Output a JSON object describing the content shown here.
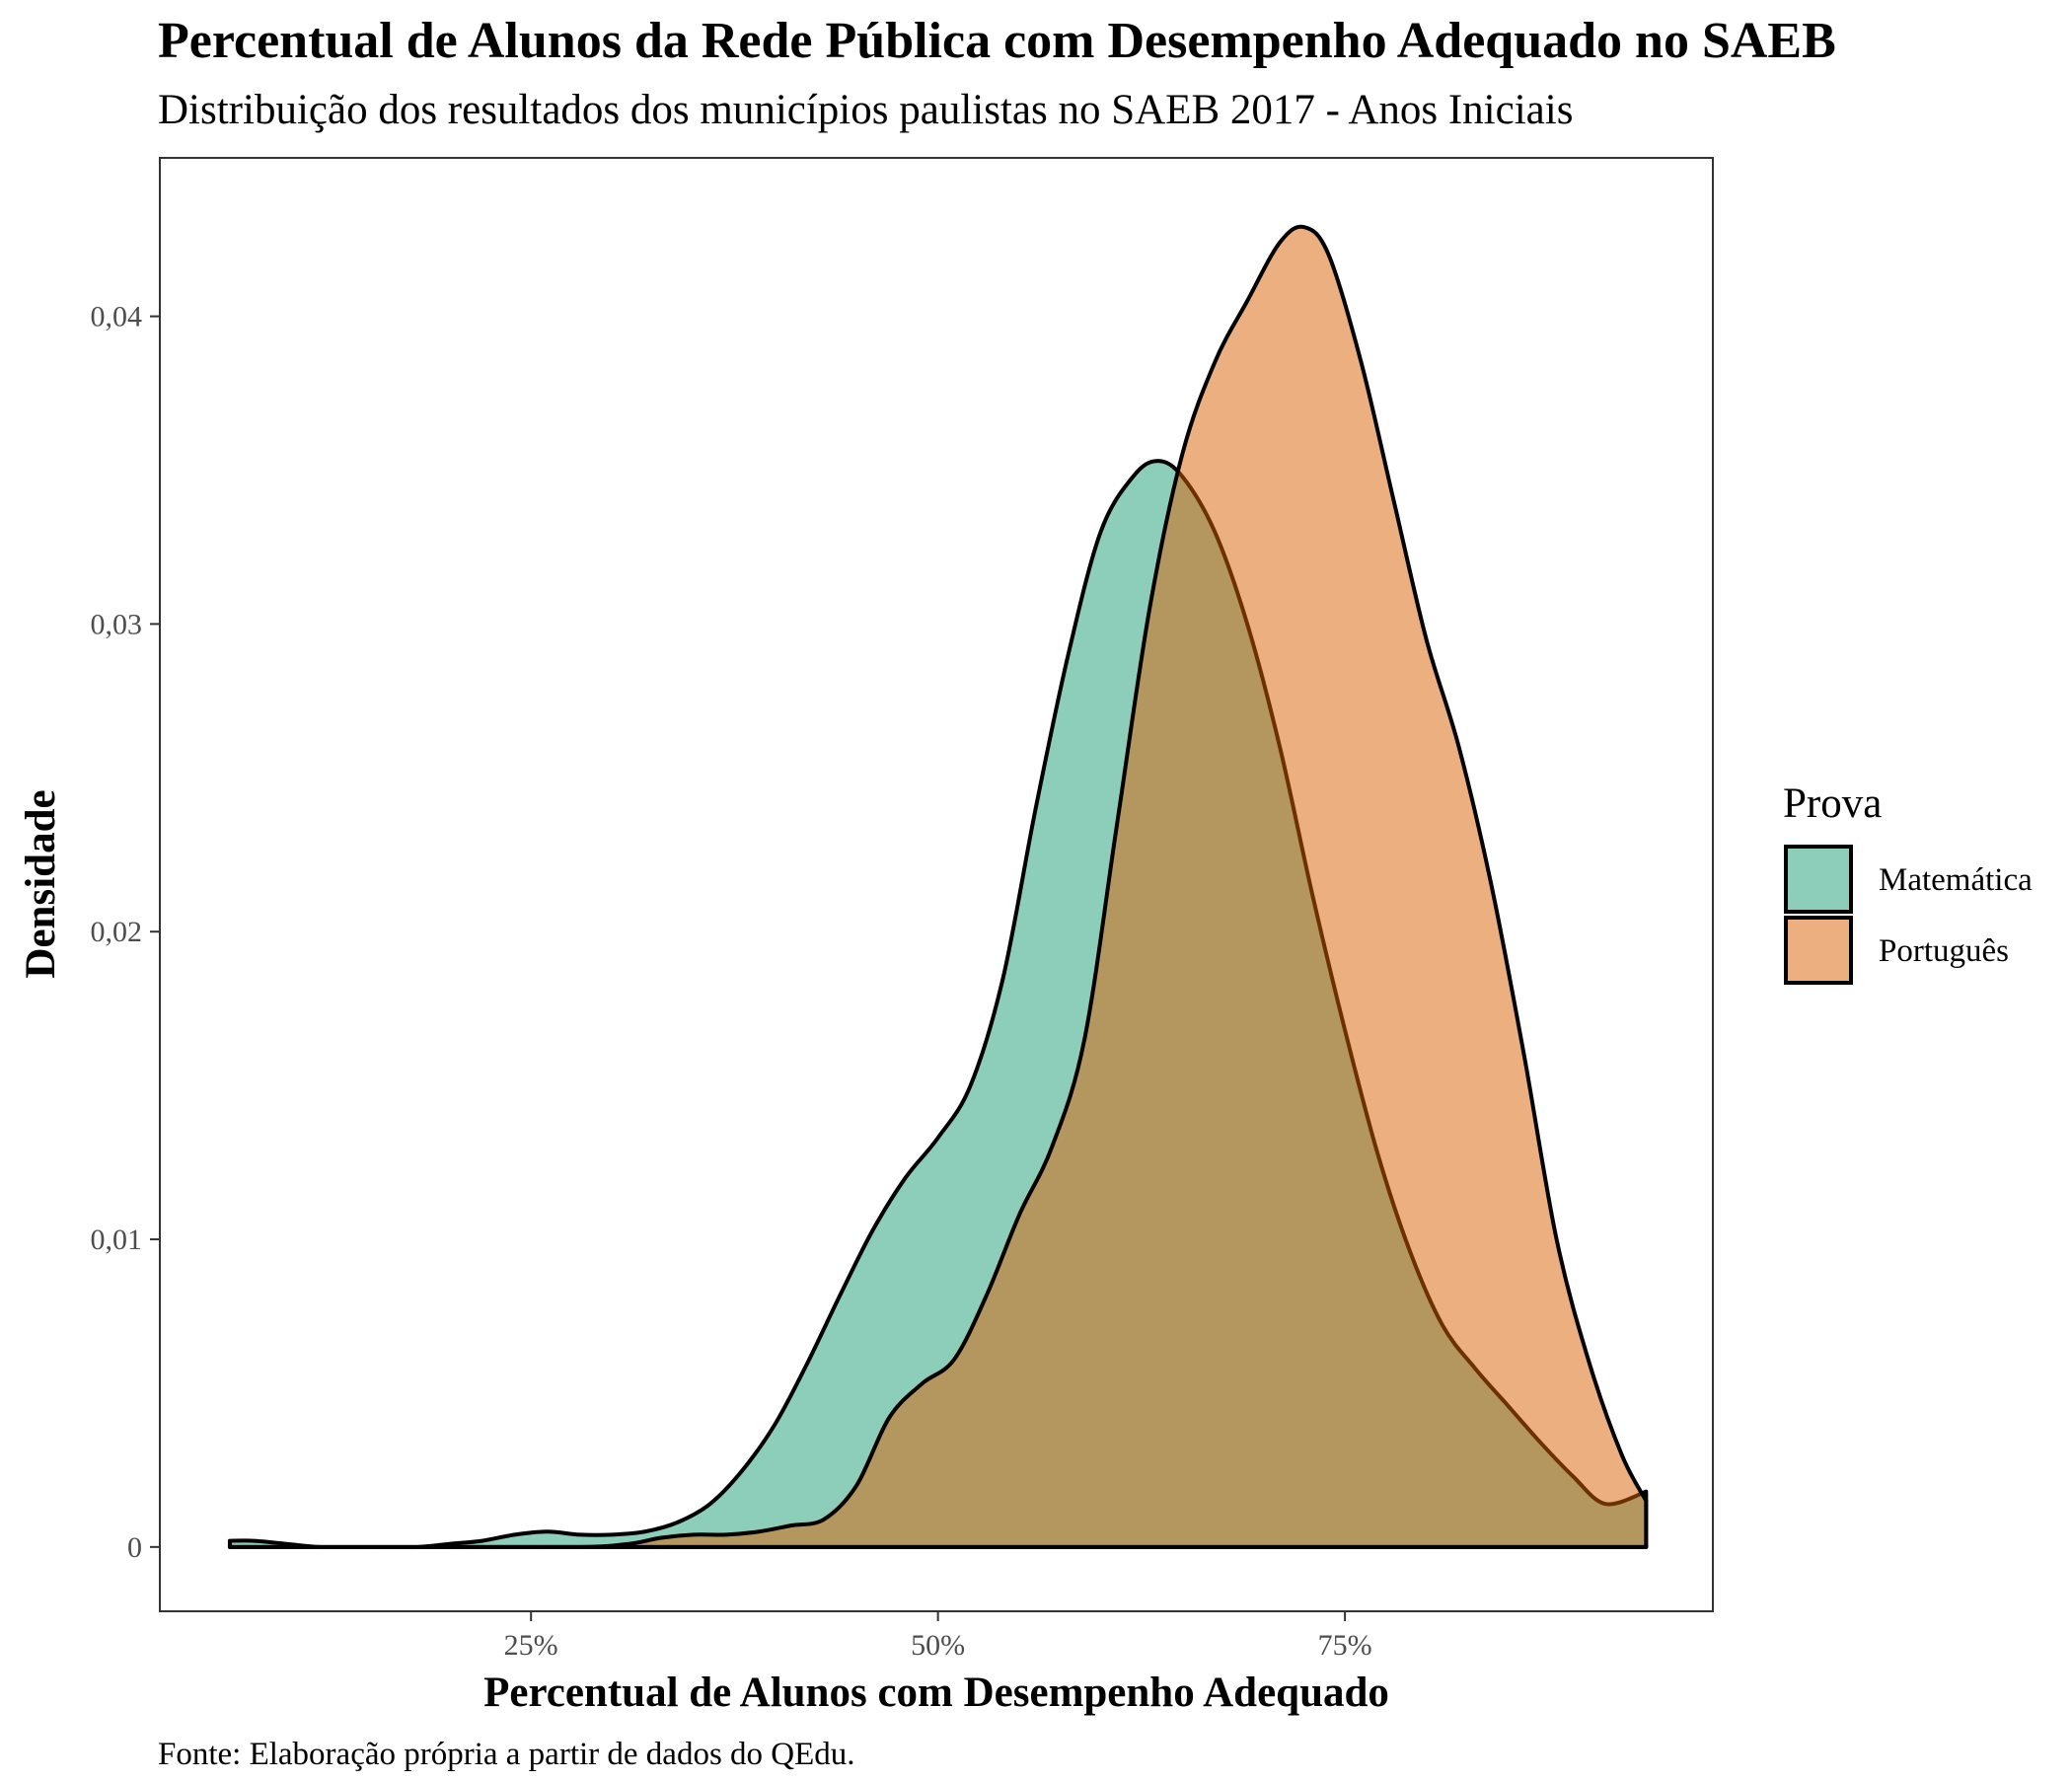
{
  "chart_data": {
    "type": "area",
    "title": "Percentual de Alunos da Rede Pública com Desempenho Adequado no SAEB",
    "subtitle": "Distribuição dos resultados dos municípios paulistas no SAEB 2017 - Anos Iniciais",
    "xlabel": "Percentual de Alunos com Desempenho Adequado",
    "ylabel": "Densidade",
    "caption": "Fonte: Elaboração própria a partir de dados do QEdu.",
    "xlim": [
      2.2,
      97.6
    ],
    "ylim": [
      -0.00209,
      0.04515
    ],
    "x_ticks": [
      {
        "value": 25,
        "label": "25%"
      },
      {
        "value": 50,
        "label": "50%"
      },
      {
        "value": 75,
        "label": "75%"
      }
    ],
    "y_ticks": [
      {
        "value": 0,
        "label": "0"
      },
      {
        "value": 0.01,
        "label": "0,01"
      },
      {
        "value": 0.02,
        "label": "0,02"
      },
      {
        "value": 0.03,
        "label": "0,03"
      },
      {
        "value": 0.04,
        "label": "0,04"
      }
    ],
    "grid": false,
    "legend": {
      "title": "Prova",
      "position": "right"
    },
    "series": [
      {
        "name": "Matemática",
        "color": "#1B9E77",
        "fill_opacity": 0.5,
        "points": [
          [
            6.5,
            0.0002
          ],
          [
            8,
            0.0002
          ],
          [
            10,
            0.0001
          ],
          [
            12,
            0.0
          ],
          [
            15,
            0.0
          ],
          [
            18,
            0.0
          ],
          [
            20,
            0.0001
          ],
          [
            22,
            0.0002
          ],
          [
            24,
            0.0004
          ],
          [
            26,
            0.0005
          ],
          [
            28,
            0.0004
          ],
          [
            30,
            0.0004
          ],
          [
            32,
            0.0005
          ],
          [
            34,
            0.0008
          ],
          [
            36,
            0.0014
          ],
          [
            38,
            0.0025
          ],
          [
            40,
            0.004
          ],
          [
            42,
            0.006
          ],
          [
            44,
            0.0082
          ],
          [
            46,
            0.0103
          ],
          [
            48,
            0.012
          ],
          [
            50,
            0.0133
          ],
          [
            52,
            0.015
          ],
          [
            54,
            0.0185
          ],
          [
            56,
            0.024
          ],
          [
            58,
            0.029
          ],
          [
            60,
            0.033
          ],
          [
            62,
            0.0348
          ],
          [
            63.5,
            0.0353
          ],
          [
            65,
            0.0348
          ],
          [
            67,
            0.033
          ],
          [
            69,
            0.03
          ],
          [
            71,
            0.026
          ],
          [
            73,
            0.0212
          ],
          [
            75,
            0.0168
          ],
          [
            77,
            0.0128
          ],
          [
            79,
            0.0096
          ],
          [
            81,
            0.0072
          ],
          [
            83,
            0.0058
          ],
          [
            85,
            0.0046
          ],
          [
            87,
            0.0034
          ],
          [
            89,
            0.0023
          ],
          [
            91,
            0.0014
          ],
          [
            93.5,
            0.0018
          ]
        ]
      },
      {
        "name": "Português",
        "color": "#D95F02",
        "fill_opacity": 0.5,
        "points": [
          [
            6.5,
            0.0
          ],
          [
            20,
            0.0
          ],
          [
            28,
            0.0
          ],
          [
            31,
            0.0001
          ],
          [
            33,
            0.0003
          ],
          [
            35,
            0.0004
          ],
          [
            37,
            0.0004
          ],
          [
            39,
            0.0005
          ],
          [
            41,
            0.0007
          ],
          [
            43,
            0.0009
          ],
          [
            45,
            0.002
          ],
          [
            47,
            0.0042
          ],
          [
            49,
            0.0053
          ],
          [
            51,
            0.0061
          ],
          [
            53,
            0.0082
          ],
          [
            55,
            0.0108
          ],
          [
            57,
            0.013
          ],
          [
            59,
            0.0165
          ],
          [
            61,
            0.0235
          ],
          [
            63,
            0.0305
          ],
          [
            65,
            0.0355
          ],
          [
            67,
            0.0385
          ],
          [
            69,
            0.0405
          ],
          [
            71,
            0.0424
          ],
          [
            72.5,
            0.0429
          ],
          [
            74,
            0.042
          ],
          [
            76,
            0.0385
          ],
          [
            78,
            0.034
          ],
          [
            80,
            0.0295
          ],
          [
            82,
            0.026
          ],
          [
            84,
            0.0215
          ],
          [
            86,
            0.016
          ],
          [
            88,
            0.01
          ],
          [
            90,
            0.006
          ],
          [
            92,
            0.003
          ],
          [
            93.5,
            0.0015
          ]
        ]
      }
    ]
  }
}
